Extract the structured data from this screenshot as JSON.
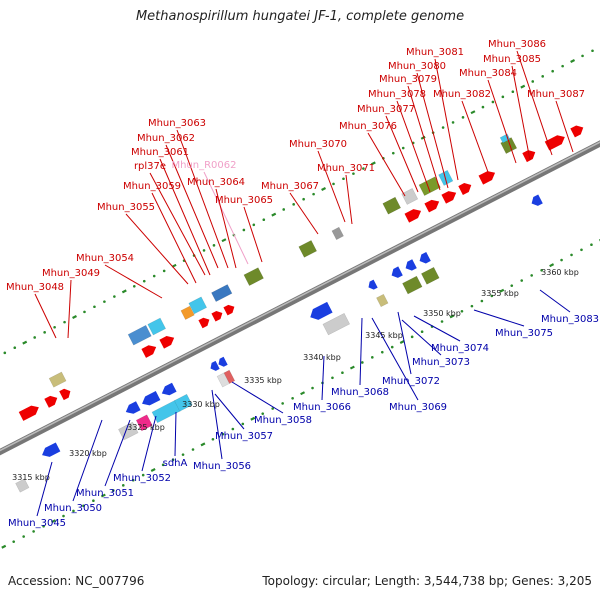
{
  "title": "Methanospirillum hungatei JF-1, complete genome",
  "footer": {
    "accession": "Accession: NC_007796",
    "topology": "Topology: circular; Length: 3,544,738 bp; Genes: 3,205"
  },
  "colors": {
    "forward_label": "#cc0000",
    "reverse_label": "#0000aa",
    "rna_label": "#f0a0c8",
    "forward_gene": "#ee0000",
    "reverse_gene": "#1a3ee0",
    "backbone": "#888888",
    "tick_dots": "#2a8a2a"
  },
  "ticks": [
    "3315 kbp",
    "3320 kbp",
    "3325 kbp",
    "3330 kbp",
    "3335 kbp",
    "3340 kbp",
    "3345 kbp",
    "3350 kbp",
    "3355 kbp",
    "3360 kbp"
  ],
  "genes_forward": [
    "Mhun_3048",
    "Mhun_3049",
    "Mhun_3054",
    "Mhun_3055",
    "Mhun_3059",
    "rpl37e",
    "Mhun_3061",
    "Mhun_3062",
    "Mhun_3063",
    "Mhun_R0062",
    "Mhun_3064",
    "Mhun_3065",
    "Mhun_3067",
    "Mhun_3070",
    "Mhun_3071",
    "Mhun_3076",
    "Mhun_3077",
    "Mhun_3078",
    "Mhun_3079",
    "Mhun_3080",
    "Mhun_3081",
    "Mhun_3082",
    "Mhun_3084",
    "Mhun_3085",
    "Mhun_3086",
    "Mhun_3087"
  ],
  "genes_reverse": [
    "Mhun_3045",
    "Mhun_3050",
    "Mhun_3051",
    "Mhun_3052",
    "sdhA",
    "Mhun_3056",
    "Mhun_3057",
    "Mhun_3058",
    "Mhun_3066",
    "Mhun_3068",
    "Mhun_3069",
    "Mhun_3072",
    "Mhun_3073",
    "Mhun_3074",
    "Mhun_3075",
    "Mhun_3083"
  ]
}
